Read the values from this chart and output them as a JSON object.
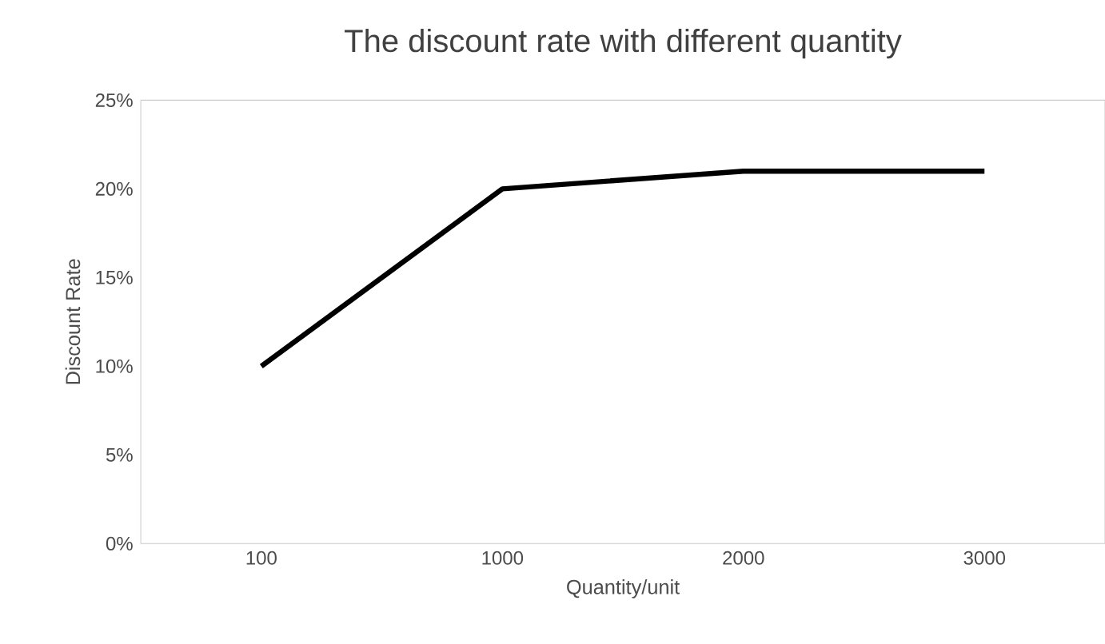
{
  "chart_data": {
    "type": "line",
    "title": "The discount rate with different quantity",
    "xlabel": "Quantity/unit",
    "ylabel": "Discount Rate",
    "categories": [
      "100",
      "1000",
      "2000",
      "3000"
    ],
    "series": [
      {
        "color": "#000000",
        "values": [
          10,
          20,
          21,
          21
        ]
      }
    ],
    "ylim": [
      0,
      25
    ],
    "yticks": [
      {
        "value": 0,
        "label": "0%"
      },
      {
        "value": 5,
        "label": "5%"
      },
      {
        "value": 10,
        "label": "10%"
      },
      {
        "value": 15,
        "label": "15%"
      },
      {
        "value": 20,
        "label": "20%"
      },
      {
        "value": 25,
        "label": "25%"
      }
    ],
    "grid": false,
    "marker": "none",
    "line_style": "solid"
  }
}
